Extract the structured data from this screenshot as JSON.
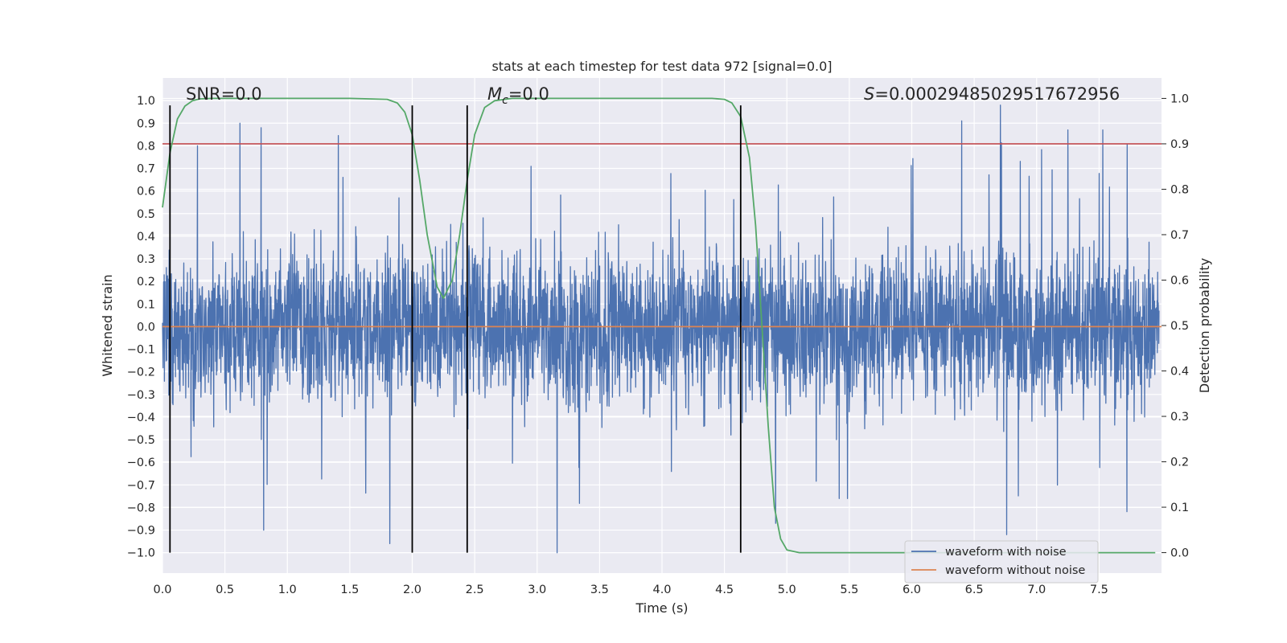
{
  "chart_data": {
    "type": "line",
    "title": "stats at each timestep for test data 972 [signal=0.0]",
    "xlabel": "Time (s)",
    "ylabel_left": "Whitened strain",
    "ylabel_right": "Detection probability",
    "xlim": [
      0.0,
      8.0
    ],
    "ylim_left": [
      -1.09,
      1.1
    ],
    "ylim_right": [
      -0.045,
      1.045
    ],
    "x_ticks": [
      "0.0",
      "0.5",
      "1.0",
      "1.5",
      "2.0",
      "2.5",
      "3.0",
      "3.5",
      "4.0",
      "4.5",
      "5.0",
      "5.5",
      "6.0",
      "6.5",
      "7.0",
      "7.5"
    ],
    "y_left_ticks": [
      "1.0",
      "0.9",
      "0.8",
      "0.7",
      "0.6",
      "0.5",
      "0.4",
      "0.3",
      "0.2",
      "0.1",
      "0.0",
      "−0.1",
      "−0.2",
      "−0.3",
      "−0.4",
      "−0.5",
      "−0.6",
      "−0.7",
      "−0.8",
      "−0.9",
      "−1.0"
    ],
    "y_right_ticks": [
      "1.0",
      "0.9",
      "0.8",
      "0.7",
      "0.6",
      "0.5",
      "0.4",
      "0.3",
      "0.2",
      "0.1",
      "0.0"
    ],
    "grid": true,
    "legend_position": "bottom-right",
    "annotations": {
      "snr": "SNR=0.0",
      "mc_symbol": "M",
      "mc_sub": "c",
      "mc_value": "=0.0",
      "s_symbol": "S",
      "s_value": "=0.00029485029517672956"
    },
    "threshold_line": {
      "y": 0.9,
      "axis": "right",
      "color": "#c44e52"
    },
    "vertical_lines_x": [
      0.06,
      2.0,
      2.44,
      4.63
    ],
    "series": [
      {
        "name": "waveform with noise",
        "axis": "left",
        "color": "#4c72b0",
        "style": "dense noise",
        "envelope_approx": [
          -1.0,
          1.0
        ],
        "peaks_approx": [
          {
            "x": 0.28,
            "y": 0.8
          },
          {
            "x": 0.62,
            "y": 0.9
          },
          {
            "x": 0.79,
            "y": 0.88
          },
          {
            "x": 6.4,
            "y": 0.91
          },
          {
            "x": 6.71,
            "y": 0.98
          },
          {
            "x": 7.25,
            "y": 0.87
          },
          {
            "x": 7.53,
            "y": 0.87
          },
          {
            "x": 3.16,
            "y": -1.0
          },
          {
            "x": 1.82,
            "y": -0.96
          },
          {
            "x": 6.76,
            "y": -0.92
          },
          {
            "x": 0.81,
            "y": -0.9
          },
          {
            "x": 4.91,
            "y": -0.87
          }
        ]
      },
      {
        "name": "waveform without noise",
        "axis": "left",
        "color": "#dd8452",
        "x": [
          0.0,
          8.0
        ],
        "y": [
          0.0,
          0.0
        ]
      },
      {
        "name": "detection probability",
        "axis": "right",
        "color": "#55a868",
        "x": [
          0.0,
          0.06,
          0.12,
          0.18,
          0.24,
          0.3,
          0.4,
          0.6,
          1.0,
          1.5,
          1.8,
          1.88,
          1.94,
          2.0,
          2.06,
          2.12,
          2.2,
          2.25,
          2.32,
          2.38,
          2.44,
          2.5,
          2.58,
          2.66,
          2.8,
          3.2,
          4.0,
          4.4,
          4.5,
          4.56,
          4.63,
          4.7,
          4.75,
          4.8,
          4.85,
          4.9,
          4.95,
          5.0,
          5.1,
          5.5,
          6.0,
          7.0,
          7.95
        ],
        "y": [
          0.76,
          0.88,
          0.955,
          0.983,
          0.995,
          0.999,
          1.0,
          1.0,
          1.0,
          1.0,
          0.998,
          0.99,
          0.97,
          0.92,
          0.82,
          0.7,
          0.585,
          0.56,
          0.6,
          0.7,
          0.82,
          0.92,
          0.98,
          0.995,
          1.0,
          1.0,
          1.0,
          1.0,
          0.998,
          0.99,
          0.96,
          0.87,
          0.72,
          0.5,
          0.28,
          0.1,
          0.03,
          0.006,
          0.0,
          0.0,
          0.0,
          0.0,
          0.0
        ]
      }
    ]
  }
}
